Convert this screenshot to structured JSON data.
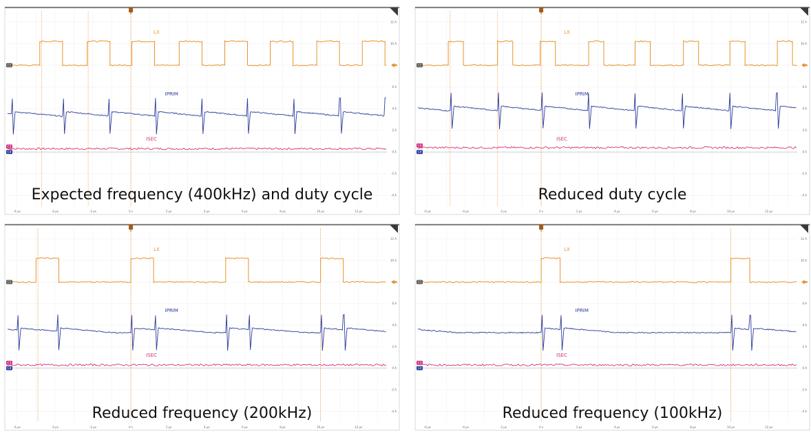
{
  "colors": {
    "lx": "#e8922a",
    "iprim": "#2a3a9c",
    "isec": "#d0307a",
    "time_marker": "#e8922a",
    "grid": "#eeeeee"
  },
  "trace_labels": {
    "lx": "LX",
    "iprim": "IPRIM",
    "isec": "ISEC"
  },
  "y_axis_ticks": [
    "12 A",
    "10 A",
    "8 A",
    "6 A",
    "4 A",
    "2 A",
    "0 A",
    "-2 A",
    "-4 A"
  ],
  "channel_badges": {
    "lx": "C1",
    "isec": "C3",
    "iprim": "C4"
  },
  "icons": {
    "trigger_marker": "trigger-marker-icon",
    "offset_arrow": "offset-arrow-icon",
    "corner_flag": "corner-flag-icon"
  },
  "chart_data": [
    {
      "type": "line",
      "caption": "Expected frequency (400kHz) and duty cycle",
      "x_ticks": [
        "-6 µs",
        "-4 µs",
        "-2 µs",
        "0 s",
        "2 µs",
        "4 µs",
        "6 µs",
        "8 µs",
        "10 µs",
        "12 µs"
      ],
      "xlim": [
        -6.5,
        13.5
      ],
      "ylim": [
        -5,
        13
      ],
      "lx": {
        "low": 8,
        "high": 10.2,
        "edges": [
          -4.8,
          -3.6,
          -2.3,
          -1.1,
          0.05,
          1.25,
          2.55,
          3.75,
          4.95,
          6.15,
          7.35,
          8.55,
          9.8,
          11.0,
          12.2,
          13.4
        ]
      },
      "iprim": {
        "base": 3.75,
        "slope": -0.35,
        "spike_times": [
          -6.3,
          -3.6,
          -1.2,
          1.25,
          3.7,
          6.1,
          8.55,
          11.0,
          13.4
        ],
        "spike_height": 1.2,
        "dip_depth": 2.5
      },
      "isec": {
        "level": 0.3
      },
      "label_positions": {
        "lx": [
          1.2,
          10.9
        ],
        "iprim": [
          1.8,
          5.2
        ],
        "isec": [
          0.8,
          1.05
        ]
      }
    },
    {
      "type": "line",
      "caption": "Reduced duty cycle",
      "x_ticks": [
        "-6 µs",
        "-4 µs",
        "-2 µs",
        "0 s",
        "2 µs",
        "4 µs",
        "6 µs",
        "8 µs",
        "10 µs",
        "12 µs"
      ],
      "xlim": [
        -6.5,
        13.5
      ],
      "ylim": [
        -5,
        13
      ],
      "lx": {
        "low": 8,
        "high": 10.2,
        "edges": [
          -4.9,
          -4.1,
          -2.3,
          -1.5,
          -0.05,
          0.75,
          2.5,
          3.3,
          4.95,
          5.75,
          7.5,
          8.3,
          9.95,
          10.75,
          12.45,
          13.25
        ]
      },
      "iprim": {
        "base": 4.25,
        "slope": -0.35,
        "spike_times": [
          -4.8,
          -2.3,
          0.0,
          2.45,
          4.9,
          7.4,
          9.9,
          12.4
        ],
        "spike_height": 1.2,
        "dip_depth": 2.5
      },
      "isec": {
        "level": 0.4
      },
      "label_positions": {
        "lx": [
          1.2,
          10.9
        ],
        "iprim": [
          1.8,
          5.2
        ],
        "isec": [
          0.8,
          1.05
        ]
      }
    },
    {
      "type": "line",
      "caption": "Reduced frequency (200kHz)",
      "x_ticks": [
        "-6 µs",
        "-4 µs",
        "-2 µs",
        "0 s",
        "2 µs",
        "4 µs",
        "6 µs",
        "8 µs",
        "10 µs",
        "12 µs"
      ],
      "xlim": [
        -6.5,
        13.5
      ],
      "ylim": [
        -5,
        13
      ],
      "lx": {
        "low": 8,
        "high": 10.2,
        "edges": [
          -5.0,
          -3.8,
          0.0,
          1.2,
          5.0,
          6.2,
          10.0,
          11.2
        ]
      },
      "iprim": {
        "base": 3.75,
        "slope": -0.3,
        "spike_times": [
          -6.0,
          -3.9,
          0.0,
          1.25,
          5.0,
          6.2,
          10.0,
          11.2
        ],
        "spike_height": 1.2,
        "dip_depth": 2.5
      },
      "isec": {
        "level": 0.3
      },
      "label_positions": {
        "lx": [
          1.2,
          10.9
        ],
        "iprim": [
          1.8,
          5.2
        ],
        "isec": [
          0.8,
          1.05
        ]
      }
    },
    {
      "type": "line",
      "caption": "Reduced frequency (100kHz)",
      "x_ticks": [
        "-6 µs",
        "-4 µs",
        "-2 µs",
        "0 s",
        "2 µs",
        "4 µs",
        "6 µs",
        "8 µs",
        "10 µs",
        "12 µs"
      ],
      "xlim": [
        -6.5,
        13.5
      ],
      "ylim": [
        -5,
        13
      ],
      "lx": {
        "low": 8,
        "high": 10.2,
        "edges": [
          0.0,
          1.0,
          10.0,
          11.0
        ]
      },
      "iprim": {
        "base": 3.75,
        "slope": -0.3,
        "spike_times": [
          0.0,
          1.0,
          10.0,
          11.0
        ],
        "spike_height": 1.2,
        "dip_depth": 2.5
      },
      "isec": {
        "level": 0.3
      },
      "label_positions": {
        "lx": [
          1.2,
          10.9
        ],
        "iprim": [
          1.8,
          5.2
        ],
        "isec": [
          0.8,
          1.05
        ]
      }
    }
  ]
}
